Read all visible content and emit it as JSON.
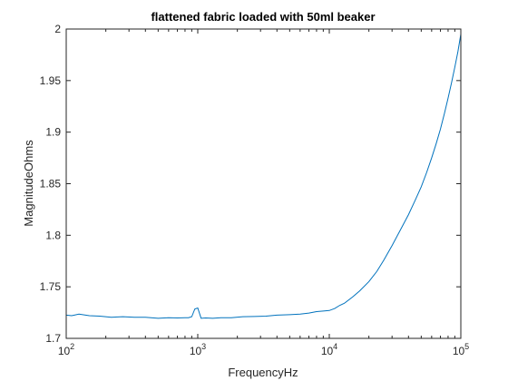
{
  "chart_data": {
    "type": "line",
    "title": "flattened fabric loaded with 50ml beaker",
    "xlabel": "FrequencyHz",
    "ylabel": "MagnitudeOhms",
    "xscale": "log",
    "xlim": [
      100,
      100000
    ],
    "ylim": [
      1.7,
      2.0
    ],
    "grid": false,
    "x_ticks": [
      {
        "value": 100,
        "base": "10",
        "exp": "2"
      },
      {
        "value": 1000,
        "base": "10",
        "exp": "3"
      },
      {
        "value": 10000,
        "base": "10",
        "exp": "4"
      },
      {
        "value": 100000,
        "base": "10",
        "exp": "5"
      }
    ],
    "y_ticks": [
      {
        "value": 1.7,
        "label": "1.7"
      },
      {
        "value": 1.75,
        "label": "1.75"
      },
      {
        "value": 1.8,
        "label": "1.8"
      },
      {
        "value": 1.85,
        "label": "1.85"
      },
      {
        "value": 1.9,
        "label": "1.9"
      },
      {
        "value": 1.95,
        "label": "1.95"
      },
      {
        "value": 2.0,
        "label": "2"
      }
    ],
    "series": [
      {
        "color": "#0072bd",
        "x": [
          100,
          110,
          125,
          150,
          180,
          220,
          270,
          330,
          400,
          500,
          600,
          700,
          800,
          850,
          900,
          950,
          1000,
          1060,
          1150,
          1300,
          1500,
          1800,
          2200,
          2700,
          3300,
          4000,
          5000,
          6000,
          7000,
          8000,
          9000,
          10000,
          11000,
          12000,
          13000,
          15000,
          17000,
          20000,
          23000,
          26000,
          30000,
          35000,
          40000,
          45000,
          50000,
          55000,
          60000,
          65000,
          70000,
          75000,
          80000,
          85000,
          90000,
          95000,
          100000
        ],
        "y": [
          1.7225,
          1.722,
          1.7235,
          1.722,
          1.7215,
          1.7205,
          1.721,
          1.7205,
          1.7205,
          1.7195,
          1.72,
          1.7198,
          1.72,
          1.72,
          1.721,
          1.7285,
          1.7295,
          1.7195,
          1.7198,
          1.7195,
          1.72,
          1.72,
          1.721,
          1.7212,
          1.7215,
          1.7225,
          1.723,
          1.7235,
          1.7245,
          1.726,
          1.7265,
          1.727,
          1.729,
          1.732,
          1.734,
          1.74,
          1.746,
          1.755,
          1.765,
          1.776,
          1.79,
          1.806,
          1.82,
          1.834,
          1.847,
          1.861,
          1.875,
          1.889,
          1.903,
          1.918,
          1.933,
          1.948,
          1.963,
          1.978,
          1.995
        ]
      }
    ]
  }
}
